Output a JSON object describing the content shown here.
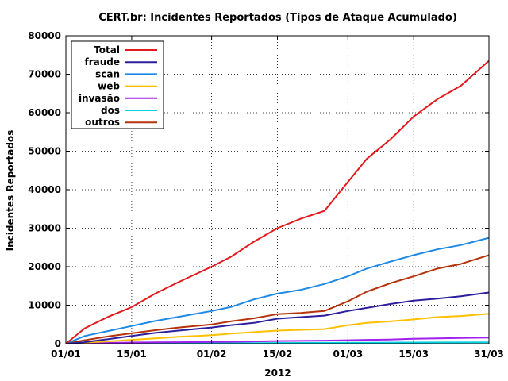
{
  "chart_data": {
    "type": "line",
    "title": "CERT.br: Incidentes Reportados (Tipos de Ataque Acumulado)",
    "xlabel": "2012",
    "ylabel": "Incidentes Reportados",
    "xlim": [
      "2012-01-01",
      "2012-03-31"
    ],
    "ylim": [
      0,
      80000
    ],
    "grid": true,
    "legend_position": "top-left",
    "x_ticks": [
      {
        "date": "2012-01-01",
        "label": "01/01"
      },
      {
        "date": "2012-01-15",
        "label": "15/01"
      },
      {
        "date": "2012-02-01",
        "label": "01/02"
      },
      {
        "date": "2012-02-15",
        "label": "15/02"
      },
      {
        "date": "2012-03-01",
        "label": "01/03"
      },
      {
        "date": "2012-03-15",
        "label": "15/03"
      },
      {
        "date": "2012-03-31",
        "label": "31/03"
      }
    ],
    "y_ticks": [
      "0",
      "10000",
      "20000",
      "30000",
      "40000",
      "50000",
      "60000",
      "70000",
      "80000"
    ],
    "x": [
      "2012-01-01",
      "2012-01-05",
      "2012-01-10",
      "2012-01-15",
      "2012-01-20",
      "2012-01-25",
      "2012-02-01",
      "2012-02-05",
      "2012-02-10",
      "2012-02-15",
      "2012-02-20",
      "2012-02-25",
      "2012-03-01",
      "2012-03-05",
      "2012-03-10",
      "2012-03-15",
      "2012-03-20",
      "2012-03-25",
      "2012-03-31"
    ],
    "series": [
      {
        "name": "Total",
        "color": "#e31a1c",
        "values": [
          0,
          4000,
          7000,
          9500,
          13000,
          16000,
          20000,
          22500,
          26500,
          30000,
          32500,
          34500,
          42000,
          48000,
          53000,
          59000,
          63500,
          67000,
          73500
        ]
      },
      {
        "name": "fraude",
        "color": "#2c1f9e",
        "values": [
          0,
          400,
          1200,
          2000,
          2800,
          3400,
          4200,
          4800,
          5400,
          6500,
          6900,
          7300,
          8500,
          9300,
          10300,
          11200,
          11700,
          12300,
          13300
        ]
      },
      {
        "name": "scan",
        "color": "#1e88e5",
        "values": [
          0,
          2000,
          3300,
          4600,
          5900,
          7000,
          8500,
          9500,
          11500,
          13000,
          14000,
          15500,
          17500,
          19500,
          21300,
          23000,
          24500,
          25600,
          27500
        ]
      },
      {
        "name": "web",
        "color": "#ffc000",
        "values": [
          0,
          300,
          600,
          1000,
          1400,
          1800,
          2200,
          2600,
          3000,
          3400,
          3600,
          3800,
          4800,
          5400,
          5800,
          6300,
          6900,
          7200,
          7800
        ]
      },
      {
        "name": "invasão",
        "color": "#a020f0",
        "values": [
          0,
          100,
          200,
          300,
          350,
          400,
          450,
          500,
          600,
          700,
          750,
          800,
          900,
          1000,
          1100,
          1300,
          1400,
          1500,
          1600
        ]
      },
      {
        "name": "dos",
        "color": "#00d0e0",
        "values": [
          0,
          20,
          40,
          60,
          80,
          100,
          120,
          140,
          160,
          180,
          200,
          220,
          240,
          260,
          280,
          300,
          320,
          340,
          360
        ]
      },
      {
        "name": "outros",
        "color": "#b5320a",
        "values": [
          0,
          900,
          1900,
          2700,
          3500,
          4200,
          5000,
          5800,
          6600,
          7700,
          8000,
          8500,
          11000,
          13500,
          15700,
          17500,
          19500,
          20700,
          23000
        ]
      }
    ]
  }
}
